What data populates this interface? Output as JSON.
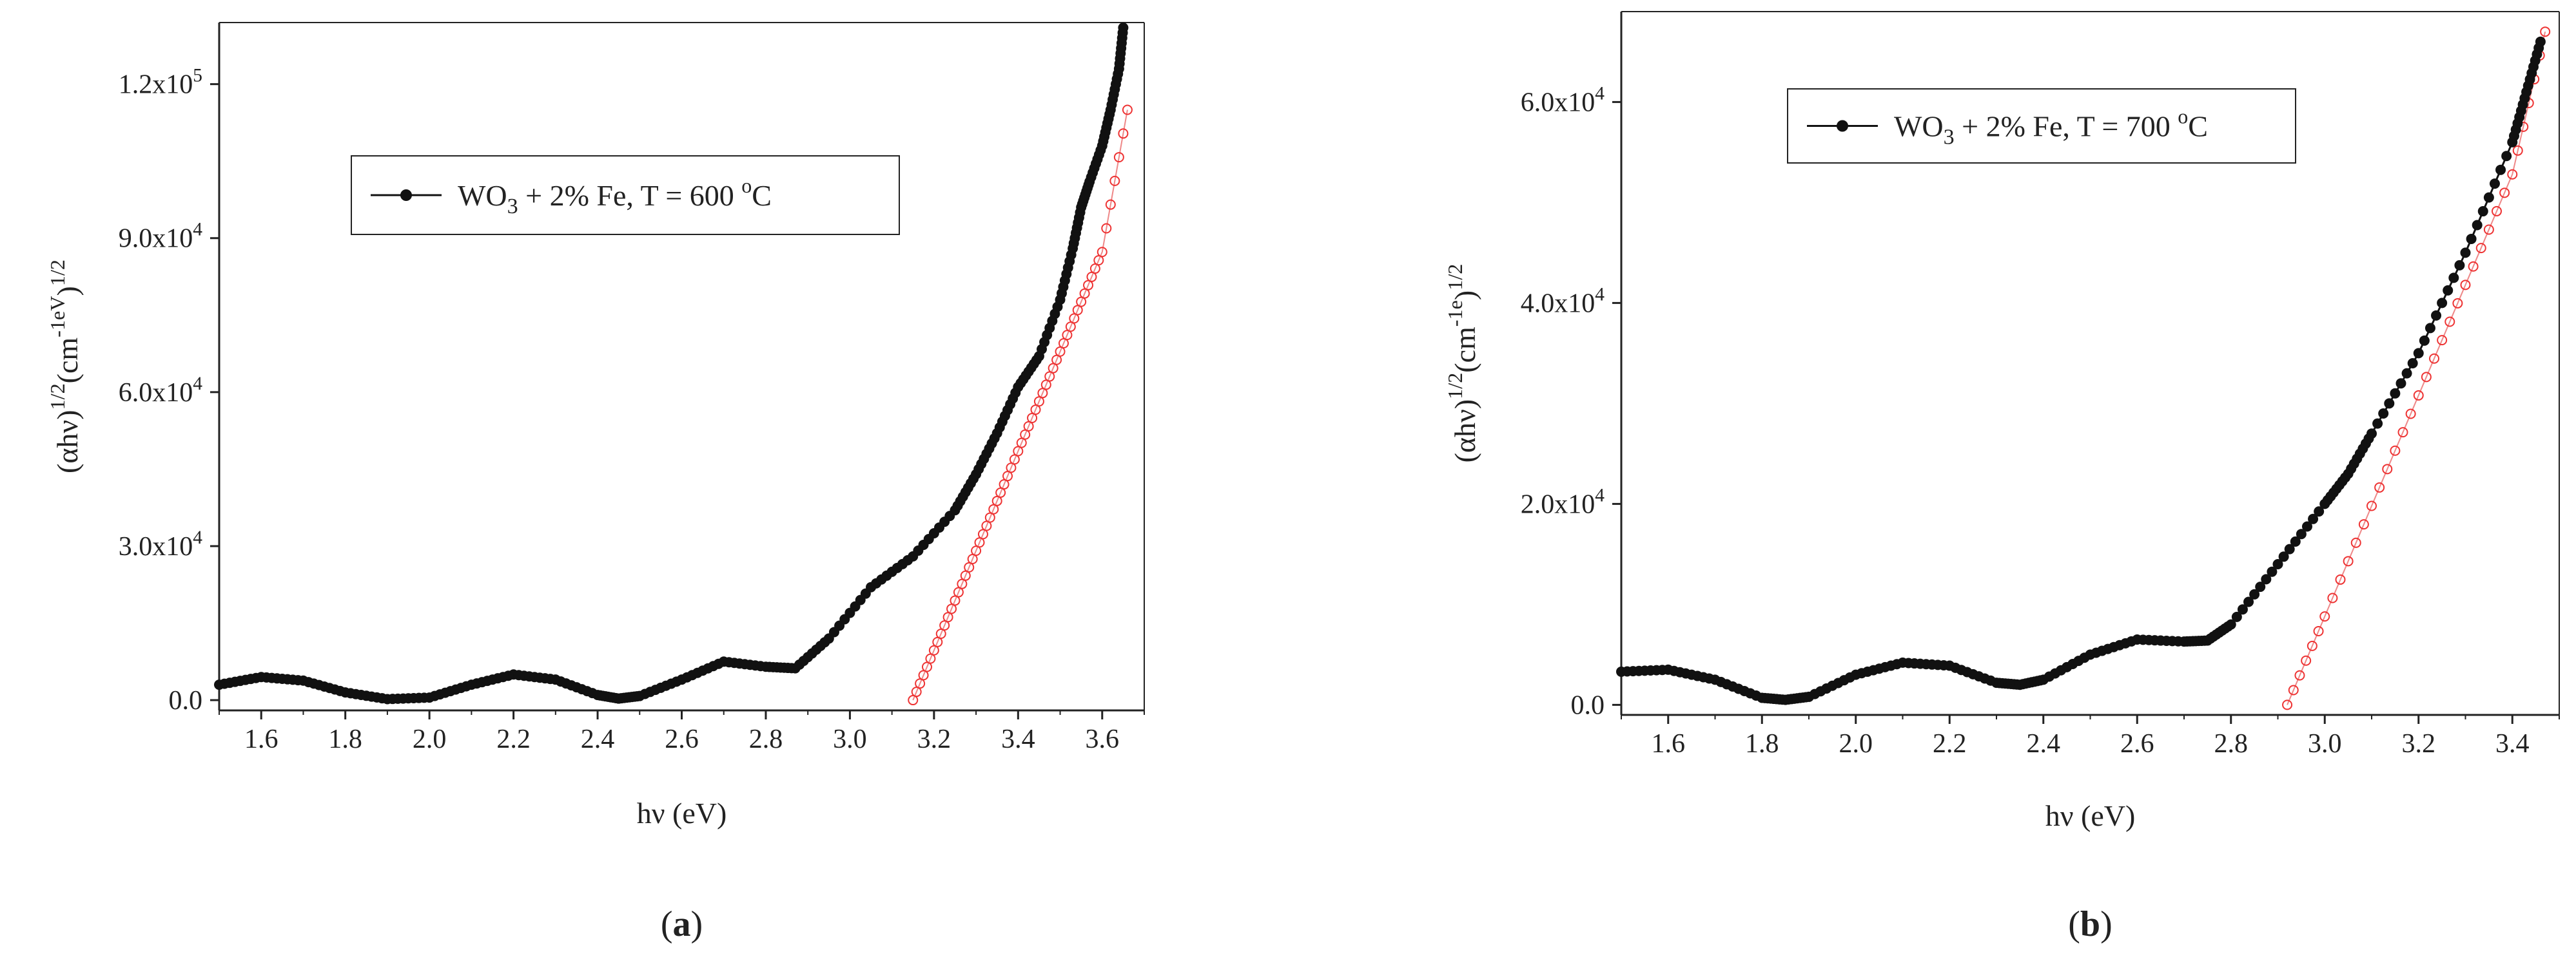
{
  "chart_data": [
    {
      "type": "scatter",
      "panel_label": "(a)",
      "panel_letter": "a",
      "xlabel": "hν (eV)",
      "ylabel": "(αhν)^1/2(cm^-1eV)^1/2",
      "xlim": [
        1.5,
        3.7
      ],
      "ylim": [
        -2000,
        132000
      ],
      "x_ticks": [
        "1.6",
        "1.8",
        "2.0",
        "2.2",
        "2.4",
        "2.6",
        "2.8",
        "3.0",
        "3.2",
        "3.4",
        "3.6"
      ],
      "y_ticks": [
        {
          "value": 0,
          "mantissa": "0.0",
          "exponent": ""
        },
        {
          "value": 30000,
          "mantissa": "3.0x10",
          "exponent": "4"
        },
        {
          "value": 60000,
          "mantissa": "6.0x10",
          "exponent": "4"
        },
        {
          "value": 90000,
          "mantissa": "9.0x10",
          "exponent": "4"
        },
        {
          "value": 120000,
          "mantissa": "1.2x10",
          "exponent": "5"
        }
      ],
      "legend": {
        "name": "WO3 + 2% Fe, T = 600 oC",
        "parts": [
          "WO",
          "3",
          " + 2% Fe, T = 600 ",
          "o",
          "C"
        ]
      },
      "series": [
        {
          "name": "WO3 + 2% Fe, T = 600 oC",
          "style": "black-filled-dots",
          "x": [
            1.5,
            1.6,
            1.7,
            1.8,
            1.9,
            2.0,
            2.1,
            2.2,
            2.3,
            2.4,
            2.45,
            2.5,
            2.6,
            2.7,
            2.8,
            2.87,
            2.95,
            3.05,
            3.15,
            3.25,
            3.3,
            3.35,
            3.4,
            3.45,
            3.5,
            3.53,
            3.55,
            3.57,
            3.6,
            3.62,
            3.64,
            3.65
          ],
          "y": [
            3000,
            4500,
            3800,
            1500,
            200,
            500,
            3000,
            5000,
            4000,
            1000,
            300,
            800,
            4000,
            7500,
            6500,
            6200,
            12000,
            22000,
            28000,
            37000,
            44000,
            52000,
            61000,
            67000,
            78000,
            88000,
            96000,
            101000,
            108000,
            115000,
            123000,
            131000
          ]
        },
        {
          "name": "linear fit",
          "style": "red-open-circles",
          "x": [
            3.15,
            3.2,
            3.25,
            3.3,
            3.35,
            3.4,
            3.45,
            3.5,
            3.55,
            3.6,
            3.66
          ],
          "y": [
            0,
            9700,
            19400,
            29100,
            38800,
            48500,
            58200,
            67900,
            77600,
            87300,
            115000
          ]
        }
      ]
    },
    {
      "type": "scatter",
      "panel_label": "(b)",
      "panel_letter": "b",
      "xlabel": "hν (eV)",
      "ylabel": "(αhν)^1/2(cm^-1e)^1/2",
      "xlim": [
        1.5,
        3.5
      ],
      "ylim": [
        -1000,
        69000
      ],
      "x_ticks": [
        "1.6",
        "1.8",
        "2.0",
        "2.2",
        "2.4",
        "2.6",
        "2.8",
        "3.0",
        "3.2",
        "3.4"
      ],
      "y_ticks": [
        {
          "value": 0,
          "mantissa": "0.0",
          "exponent": ""
        },
        {
          "value": 20000,
          "mantissa": "2.0x10",
          "exponent": "4"
        },
        {
          "value": 40000,
          "mantissa": "4.0x10",
          "exponent": "4"
        },
        {
          "value": 60000,
          "mantissa": "6.0x10",
          "exponent": "4"
        }
      ],
      "legend": {
        "name": "WO3 + 2% Fe, T = 700 oC",
        "parts": [
          "WO",
          "3",
          " + 2% Fe, T = 700 ",
          "o",
          "C"
        ]
      },
      "series": [
        {
          "name": "WO3 + 2% Fe, T = 700 oC",
          "style": "black-filled-dots",
          "x": [
            1.5,
            1.6,
            1.7,
            1.8,
            1.85,
            1.9,
            2.0,
            2.1,
            2.2,
            2.3,
            2.35,
            2.4,
            2.5,
            2.6,
            2.7,
            2.75,
            2.8,
            2.9,
            3.0,
            3.05,
            3.1,
            3.2,
            3.3,
            3.4,
            3.43,
            3.46
          ],
          "y": [
            3300,
            3500,
            2500,
            700,
            500,
            800,
            3000,
            4200,
            3900,
            2200,
            2000,
            2500,
            5000,
            6500,
            6300,
            6400,
            8000,
            14000,
            20000,
            23000,
            27000,
            35000,
            45000,
            56000,
            61000,
            66000
          ]
        },
        {
          "name": "linear fit",
          "style": "red-open-circles",
          "x": [
            2.92,
            3.0,
            3.1,
            3.2,
            3.3,
            3.4,
            3.47
          ],
          "y": [
            0,
            8800,
            19800,
            30800,
            41800,
            52800,
            67000
          ]
        }
      ]
    }
  ]
}
